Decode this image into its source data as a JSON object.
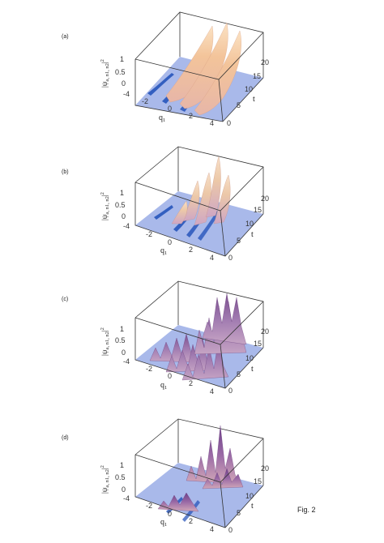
{
  "figure": {
    "label": "Fig. 2",
    "panels": [
      {
        "label": "(a)",
        "ylabel": "|ψ",
        "ysub": "a, n1, n2",
        "ysup": "2",
        "xlabel": "q",
        "xsub": "1",
        "tlabel": "t",
        "xticks": [
          "-4",
          "-2",
          "0",
          "2",
          "4"
        ],
        "tticks": [
          "0",
          "5",
          "10",
          "15",
          "20"
        ],
        "zticks": [
          "0",
          "0.5",
          "1"
        ]
      },
      {
        "label": "(b)",
        "ylabel": "|ψ",
        "ysub": "a, n1, n2",
        "ysup": "2",
        "xlabel": "q",
        "xsub": "1",
        "tlabel": "t",
        "xticks": [
          "-4",
          "-2",
          "0",
          "2",
          "4"
        ],
        "tticks": [
          "0",
          "5",
          "10",
          "15",
          "20"
        ],
        "zticks": [
          "0",
          "0.5",
          "1"
        ]
      },
      {
        "label": "(c)",
        "ylabel": "|ψ",
        "ysub": "a, n1, n2",
        "ysup": "2",
        "xlabel": "q",
        "xsub": "1",
        "tlabel": "t",
        "xticks": [
          "-4",
          "-2",
          "0",
          "2",
          "4"
        ],
        "tticks": [
          "0",
          "5",
          "10",
          "15",
          "20"
        ],
        "zticks": [
          "0",
          "0.5",
          "1"
        ]
      },
      {
        "label": "(d)",
        "ylabel": "|ψ",
        "ysub": "a, n1, n2",
        "ysup": "2",
        "xlabel": "q",
        "xsub": "1",
        "tlabel": "t",
        "xticks": [
          "-4",
          "-2",
          "0",
          "2",
          "4"
        ],
        "tticks": [
          "0",
          "5",
          "10",
          "15",
          "20"
        ],
        "zticks": [
          "0",
          "0.5",
          "1"
        ]
      }
    ]
  },
  "colors": {
    "floor": "#a9b9ea",
    "peak_a": "#f3c49a",
    "peak_b": "#ecc8a8",
    "peak_c": "#a07ab0",
    "peak_d": "#8e5f9e",
    "dark": "#1f4fb8",
    "box": "#333333"
  }
}
